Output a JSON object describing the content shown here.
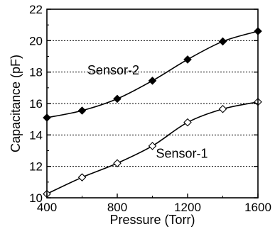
{
  "chart_data": {
    "type": "line",
    "title": "",
    "xlabel": "Pressure (Torr)",
    "ylabel": "Capacitance (pF)",
    "xlim": [
      400,
      1600
    ],
    "ylim": [
      10,
      22
    ],
    "x_ticks": [
      400,
      800,
      1200,
      1600
    ],
    "y_ticks": [
      10,
      12,
      14,
      16,
      18,
      20,
      22
    ],
    "grid": "horizontal-dotted",
    "legend": "none",
    "series": [
      {
        "name": "Sensor-2",
        "marker": "filled-diamond",
        "color": "#000000",
        "x": [
          400,
          600,
          800,
          1000,
          1200,
          1400,
          1600
        ],
        "y": [
          15.1,
          15.55,
          16.3,
          17.45,
          18.8,
          19.95,
          20.6
        ]
      },
      {
        "name": "Sensor-1",
        "marker": "open-diamond",
        "color": "#000000",
        "x": [
          400,
          600,
          800,
          1000,
          1200,
          1400,
          1600
        ],
        "y": [
          10.25,
          11.3,
          12.2,
          13.3,
          14.8,
          15.65,
          16.1
        ]
      }
    ],
    "annotations": [
      "Sensor-2",
      "Sensor-1"
    ]
  }
}
